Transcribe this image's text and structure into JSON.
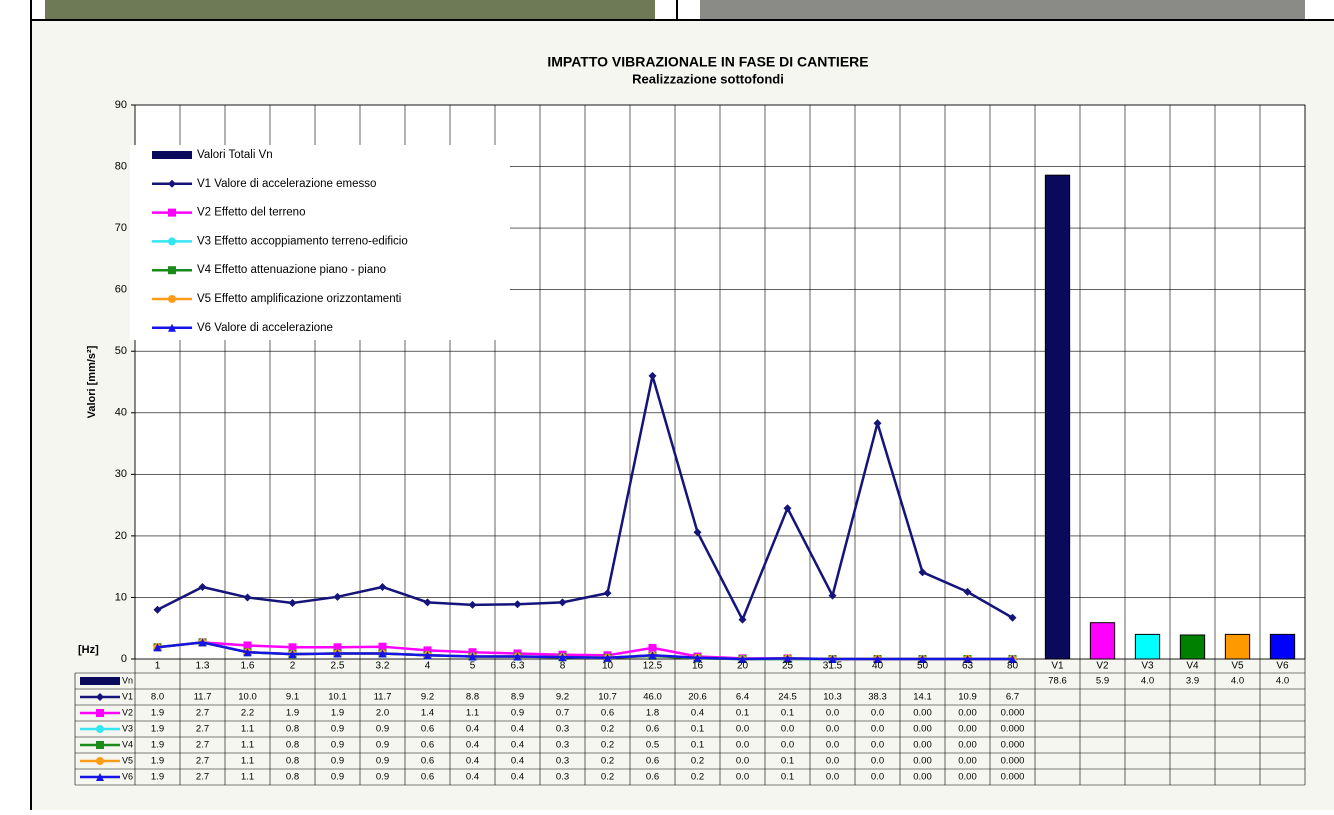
{
  "chart_data": {
    "type": "line",
    "title": "IMPATTO VIBRAZIONALE IN FASE DI CANTIERE",
    "subtitle": "Realizzazione sottofondi",
    "y_label": "Valori [mm/s²]",
    "x_label": "[Hz]",
    "categories": [
      "1",
      "1.3",
      "1.6",
      "2",
      "2.5",
      "3.2",
      "4",
      "5",
      "6.3",
      "8",
      "10",
      "12.5",
      "16",
      "20",
      "25",
      "31.5",
      "40",
      "50",
      "63",
      "80",
      "V1",
      "V2",
      "V3",
      "V4",
      "V5",
      "V6"
    ],
    "ylim": [
      0,
      90
    ],
    "yticks": [
      0,
      10,
      20,
      30,
      40,
      50,
      60,
      70,
      80,
      90
    ],
    "grid": true,
    "legend": "upper left",
    "series": [
      {
        "name": "Valori Totali Vn",
        "short_name": "Vn",
        "type": "bar",
        "color": "#0a0a5c",
        "colors": [
          "#0a0a5c",
          "#ff00ff",
          "#00ffff",
          "#008000",
          "#ff9900",
          "#0000ff"
        ],
        "values": [
          null,
          null,
          null,
          null,
          null,
          null,
          null,
          null,
          null,
          null,
          null,
          null,
          null,
          null,
          null,
          null,
          null,
          null,
          null,
          null,
          78.6,
          5.9,
          4.0,
          3.9,
          4.0,
          4.0
        ],
        "value_labels": [
          null,
          null,
          null,
          null,
          null,
          null,
          null,
          null,
          null,
          null,
          null,
          null,
          null,
          null,
          null,
          null,
          null,
          null,
          null,
          null,
          "78.6",
          "5.9",
          "4.0",
          "3.9",
          "4.0",
          "4.0"
        ]
      },
      {
        "name": "V1 Valore di accelerazione emesso",
        "short_name": "V1",
        "type": "line",
        "marker": "diamond",
        "color": "#14147a",
        "values": [
          8.0,
          11.7,
          10.0,
          9.1,
          10.1,
          11.7,
          9.2,
          8.8,
          8.9,
          9.2,
          10.7,
          46.0,
          20.6,
          6.4,
          24.5,
          10.3,
          38.3,
          14.1,
          10.9,
          6.7,
          null,
          null,
          null,
          null,
          null,
          null
        ],
        "value_labels": [
          "8.0",
          "11.7",
          "10.0",
          "9.1",
          "10.1",
          "11.7",
          "9.2",
          "8.8",
          "8.9",
          "9.2",
          "10.7",
          "46.0",
          "20.6",
          "6.4",
          "24.5",
          "10.3",
          "38.3",
          "14.1",
          "10.9",
          "6.7",
          null,
          null,
          null,
          null,
          null,
          null
        ]
      },
      {
        "name": "V2 Effetto del terreno",
        "short_name": "V2",
        "type": "line",
        "marker": "square",
        "color": "#ff00ff",
        "values": [
          1.9,
          2.7,
          2.2,
          1.9,
          1.9,
          2.0,
          1.4,
          1.1,
          0.9,
          0.7,
          0.6,
          1.8,
          0.4,
          0.1,
          0.1,
          0.0,
          0.0,
          0.0,
          0.0,
          0.0,
          null,
          null,
          null,
          null,
          null,
          null
        ],
        "value_labels": [
          "1.9",
          "2.7",
          "2.2",
          "1.9",
          "1.9",
          "2.0",
          "1.4",
          "1.1",
          "0.9",
          "0.7",
          "0.6",
          "1.8",
          "0.4",
          "0.1",
          "0.1",
          "0.0",
          "0.0",
          "0.00",
          "0.00",
          "0.000",
          null,
          null,
          null,
          null,
          null,
          null
        ]
      },
      {
        "name": "V3 Effetto accoppiamento terreno-edificio",
        "short_name": "V3",
        "type": "line",
        "marker": "circle",
        "color": "#33e6f0",
        "values": [
          1.9,
          2.7,
          1.1,
          0.8,
          0.9,
          0.9,
          0.6,
          0.4,
          0.4,
          0.3,
          0.2,
          0.6,
          0.1,
          0.0,
          0.0,
          0.0,
          0.0,
          0.0,
          0.0,
          0.0,
          null,
          null,
          null,
          null,
          null,
          null
        ],
        "value_labels": [
          "1.9",
          "2.7",
          "1.1",
          "0.8",
          "0.9",
          "0.9",
          "0.6",
          "0.4",
          "0.4",
          "0.3",
          "0.2",
          "0.6",
          "0.1",
          "0.0",
          "0.0",
          "0.0",
          "0.0",
          "0.00",
          "0.00",
          "0.000",
          null,
          null,
          null,
          null,
          null,
          null
        ]
      },
      {
        "name": "V4 Effetto attenuazione piano - piano",
        "short_name": "V4",
        "type": "line",
        "marker": "square",
        "color": "#1a8a1a",
        "values": [
          1.9,
          2.7,
          1.1,
          0.8,
          0.9,
          0.9,
          0.6,
          0.4,
          0.4,
          0.3,
          0.2,
          0.5,
          0.1,
          0.0,
          0.0,
          0.0,
          0.0,
          0.0,
          0.0,
          0.0,
          null,
          null,
          null,
          null,
          null,
          null
        ],
        "value_labels": [
          "1.9",
          "2.7",
          "1.1",
          "0.8",
          "0.9",
          "0.9",
          "0.6",
          "0.4",
          "0.4",
          "0.3",
          "0.2",
          "0.5",
          "0.1",
          "0.0",
          "0.0",
          "0.0",
          "0.0",
          "0.00",
          "0.00",
          "0.000",
          null,
          null,
          null,
          null,
          null,
          null
        ]
      },
      {
        "name": "V5 Effetto amplificazione orizzontamenti",
        "short_name": "V5",
        "type": "line",
        "marker": "circle",
        "color": "#ff9c1a",
        "values": [
          1.9,
          2.7,
          1.1,
          0.8,
          0.9,
          0.9,
          0.6,
          0.4,
          0.4,
          0.3,
          0.2,
          0.6,
          0.2,
          0.0,
          0.1,
          0.0,
          0.0,
          0.0,
          0.0,
          0.0,
          null,
          null,
          null,
          null,
          null,
          null
        ],
        "value_labels": [
          "1.9",
          "2.7",
          "1.1",
          "0.8",
          "0.9",
          "0.9",
          "0.6",
          "0.4",
          "0.4",
          "0.3",
          "0.2",
          "0.6",
          "0.2",
          "0.0",
          "0.1",
          "0.0",
          "0.0",
          "0.00",
          "0.00",
          "0.000",
          null,
          null,
          null,
          null,
          null,
          null
        ]
      },
      {
        "name": "V6 Valore di accelerazione",
        "short_name": "V6",
        "type": "line",
        "marker": "triangle",
        "color": "#1414e6",
        "values": [
          1.9,
          2.7,
          1.1,
          0.8,
          0.9,
          0.9,
          0.6,
          0.4,
          0.4,
          0.3,
          0.2,
          0.6,
          0.2,
          0.0,
          0.1,
          0.0,
          0.0,
          0.0,
          0.0,
          0.0,
          null,
          null,
          null,
          null,
          null,
          null
        ],
        "value_labels": [
          "1.9",
          "2.7",
          "1.1",
          "0.8",
          "0.9",
          "0.9",
          "0.6",
          "0.4",
          "0.4",
          "0.3",
          "0.2",
          "0.6",
          "0.2",
          "0.0",
          "0.1",
          "0.0",
          "0.0",
          "0.00",
          "0.00",
          "0.000",
          null,
          null,
          null,
          null,
          null,
          null
        ]
      }
    ]
  }
}
